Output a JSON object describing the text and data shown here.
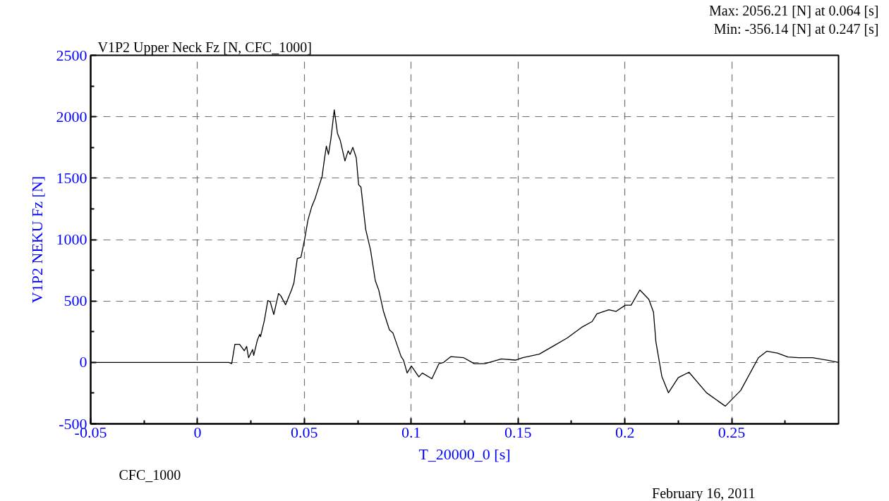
{
  "chart_data": {
    "type": "line",
    "title": "V1P2 Upper Neck Fz [N, CFC_1000]",
    "xlabel": "T_20000_0 [s]",
    "ylabel": "V1P2 NEKU Fz [N]",
    "annotations": [
      "Max:  2056.21 [N] at 0.064 [s]",
      "Min:  -356.14 [N] at 0.247 [s]",
      "CFC_1000",
      "February 16, 2011"
    ],
    "xlim": [
      -0.05,
      0.3
    ],
    "ylim": [
      -500,
      2500
    ],
    "xticks": [
      -0.05,
      0,
      0.05,
      0.1,
      0.15,
      0.2,
      0.25,
      {
        "value": -0.025,
        "label": null
      },
      {
        "value": 0.025,
        "label": null
      },
      {
        "value": 0.075,
        "label": null
      },
      {
        "value": 0.125,
        "label": null
      },
      {
        "value": 0.175,
        "label": null
      },
      {
        "value": 0.225,
        "label": null
      },
      {
        "value": 0.275,
        "label": null
      }
    ],
    "yticks": [
      -500,
      0,
      500,
      1000,
      1500,
      2000,
      2500,
      {
        "value": -250,
        "label": null
      },
      {
        "value": 250,
        "label": null
      },
      {
        "value": 750,
        "label": null
      },
      {
        "value": 1250,
        "label": null
      },
      {
        "value": 1750,
        "label": null
      },
      {
        "value": 2250,
        "label": null
      }
    ],
    "grid": true,
    "line_style": "solid",
    "series": [
      {
        "color": "#000000",
        "x": [
          -0.05,
          0.0,
          0.0147,
          0.016,
          0.0175,
          0.0197,
          0.0219,
          0.023,
          0.0239,
          0.0258,
          0.0263,
          0.028,
          0.0291,
          0.0295,
          0.0313,
          0.0329,
          0.034,
          0.0357,
          0.0379,
          0.039,
          0.0412,
          0.044,
          0.0451,
          0.0467,
          0.0484,
          0.0501,
          0.0517,
          0.0534,
          0.055,
          0.0572,
          0.0583,
          0.0594,
          0.0603,
          0.0613,
          0.0624,
          0.064,
          0.0655,
          0.0668,
          0.069,
          0.0705,
          0.0714,
          0.0727,
          0.0743,
          0.0754,
          0.0765,
          0.0787,
          0.081,
          0.0832,
          0.0848,
          0.087,
          0.0898,
          0.0915,
          0.0953,
          0.0964,
          0.0981,
          0.1001,
          0.1036,
          0.1052,
          0.1097,
          0.113,
          0.1152,
          0.1185,
          0.1246,
          0.1295,
          0.1345,
          0.1422,
          0.1488,
          0.1522,
          0.1599,
          0.1665,
          0.1731,
          0.1797,
          0.1847,
          0.1869,
          0.1925,
          0.1958,
          0.2002,
          0.2029,
          0.207,
          0.2112,
          0.2134,
          0.2145,
          0.2173,
          0.2204,
          0.225,
          0.23,
          0.2382,
          0.247,
          0.2542,
          0.2625,
          0.2664,
          0.2714,
          0.2763,
          0.2813,
          0.2879,
          0.2956,
          0.3
        ],
        "values": [
          0,
          0,
          0,
          -10,
          148,
          148,
          95,
          130,
          38,
          105,
          57,
          181,
          228,
          209,
          342,
          504,
          495,
          390,
          561,
          542,
          470,
          590,
          647,
          846,
          856,
          999,
          1160,
          1265,
          1332,
          1455,
          1513,
          1655,
          1760,
          1693,
          1817,
          2056,
          1865,
          1808,
          1640,
          1722,
          1693,
          1751,
          1665,
          1446,
          1427,
          1084,
          913,
          666,
          590,
          418,
          266,
          238,
          47,
          19,
          -86,
          -29,
          -118,
          -86,
          -133,
          -10,
          0,
          47,
          38,
          -10,
          -10,
          29,
          19,
          38,
          67,
          133,
          200,
          285,
          333,
          396,
          428,
          415,
          466,
          466,
          590,
          514,
          409,
          171,
          -114,
          -247,
          -124,
          -80,
          -247,
          -356,
          -228,
          38,
          91,
          76,
          44,
          38,
          38,
          15,
          0
        ]
      }
    ]
  }
}
